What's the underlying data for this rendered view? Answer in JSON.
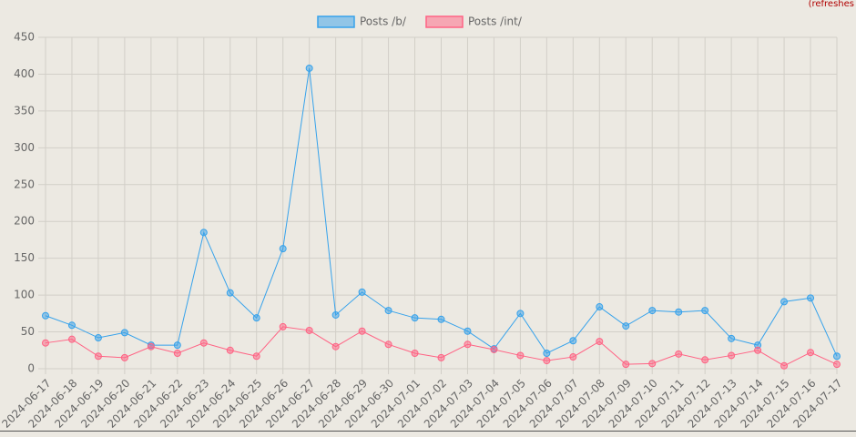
{
  "note": "(refreshes",
  "chart_data": {
    "type": "line",
    "categories": [
      "2024-06-17",
      "2024-06-18",
      "2024-06-19",
      "2024-06-20",
      "2024-06-21",
      "2024-06-22",
      "2024-06-23",
      "2024-06-24",
      "2024-06-25",
      "2024-06-26",
      "2024-06-27",
      "2024-06-28",
      "2024-06-29",
      "2024-06-30",
      "2024-07-01",
      "2024-07-02",
      "2024-07-03",
      "2024-07-04",
      "2024-07-05",
      "2024-07-06",
      "2024-07-07",
      "2024-07-08",
      "2024-07-09",
      "2024-07-10",
      "2024-07-11",
      "2024-07-12",
      "2024-07-13",
      "2024-07-14",
      "2024-07-15",
      "2024-07-16",
      "2024-07-17"
    ],
    "series": [
      {
        "name": "Posts /b/",
        "color": "#36a2eb",
        "values": [
          72,
          59,
          42,
          49,
          32,
          32,
          185,
          103,
          69,
          163,
          408,
          73,
          104,
          79,
          69,
          67,
          51,
          27,
          75,
          21,
          38,
          84,
          58,
          79,
          77,
          79,
          41,
          32,
          91,
          96,
          17
        ]
      },
      {
        "name": "Posts /int/",
        "color": "#ff6384",
        "values": [
          35,
          40,
          17,
          15,
          30,
          21,
          35,
          25,
          17,
          57,
          52,
          30,
          51,
          33,
          21,
          15,
          33,
          26,
          18,
          11,
          16,
          37,
          6,
          7,
          20,
          12,
          18,
          25,
          4,
          22,
          6
        ]
      }
    ],
    "ylim": [
      0,
      450
    ],
    "yticks": [
      0,
      50,
      100,
      150,
      200,
      250,
      300,
      350,
      400,
      450
    ],
    "grid": true,
    "legend": "top"
  }
}
